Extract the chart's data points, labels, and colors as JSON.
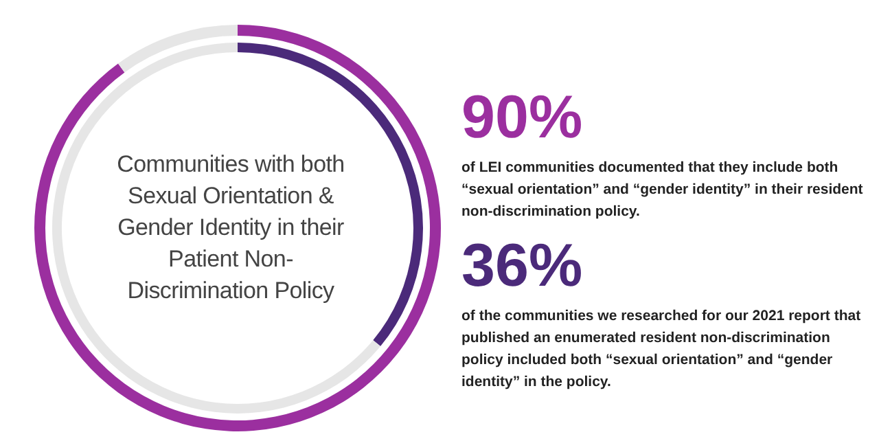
{
  "chart_data": {
    "type": "donut",
    "title": "Communities with both Sexual Orientation & Gender Identity in their Patient Non-Discrimination Policy",
    "categories": [
      null,
      null
    ],
    "series": [
      {
        "color": "#9b2f9f",
        "colors": [
          "#9b2f9f",
          "#e6e6e6"
        ],
        "values": [
          90,
          10
        ],
        "value_labels": [
          "90%",
          null
        ]
      },
      {
        "color": "#4b2a7a",
        "colors": [
          "#4b2a7a",
          "#e6e6e6"
        ],
        "values": [
          36,
          64
        ],
        "value_labels": [
          "36%",
          null
        ]
      }
    ],
    "annotations": [
      "of LEI communities documented that they include both “sexual orientation” and “gender identity” in their resident non-discrimination policy.",
      "of the communities we researched for our 2021 report that published an enumerated resident non-discrimination policy included both “sexual orientation” and “gender identity” in the policy."
    ]
  }
}
